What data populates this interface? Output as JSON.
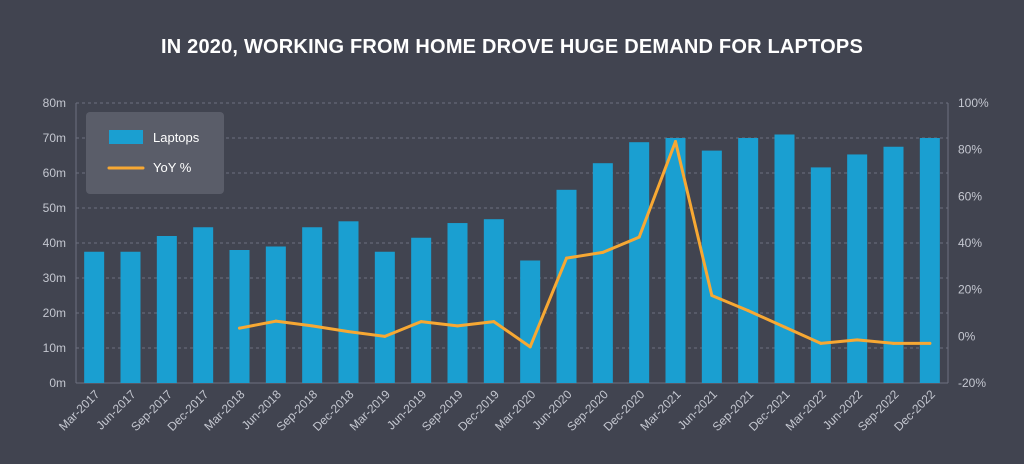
{
  "chart_data": {
    "type": "bar",
    "title": "IN 2020, WORKING FROM HOME DROVE HUGE DEMAND FOR LAPTOPS",
    "categories": [
      "Mar-2017",
      "Jun-2017",
      "Sep-2017",
      "Dec-2017",
      "Mar-2018",
      "Jun-2018",
      "Sep-2018",
      "Dec-2018",
      "Mar-2019",
      "Jun-2019",
      "Sep-2019",
      "Dec-2019",
      "Mar-2020",
      "Jun-2020",
      "Sep-2020",
      "Dec-2020",
      "Mar-2021",
      "Jun-2021",
      "Sep-2021",
      "Dec-2021",
      "Mar-2022",
      "Jun-2022",
      "Sep-2022",
      "Dec-2022"
    ],
    "series": [
      {
        "name": "Laptops",
        "type": "bar",
        "axis": "left",
        "values": [
          37.5,
          37.5,
          42,
          44.5,
          38,
          39,
          44.5,
          46.2,
          37.5,
          41.5,
          45.7,
          46.8,
          35,
          55.2,
          62.8,
          68.8,
          70,
          66.4,
          70,
          71,
          61.6,
          65.3,
          67.5,
          70
        ]
      },
      {
        "name": "YoY %",
        "type": "line",
        "axis": "right",
        "values": [
          null,
          null,
          null,
          null,
          3.5,
          6.5,
          4.5,
          2,
          0,
          6.3,
          4.5,
          6.3,
          -4.5,
          33.5,
          36,
          42.5,
          83.5,
          17.5,
          11,
          4,
          -3,
          -1.5,
          -3,
          -3
        ]
      }
    ],
    "left_axis": {
      "ylim": [
        0,
        80
      ],
      "ticks": [
        "0m",
        "10m",
        "20m",
        "30m",
        "40m",
        "50m",
        "60m",
        "70m",
        "80m"
      ]
    },
    "right_axis": {
      "ylim": [
        -20,
        100
      ],
      "ticks": [
        "-20%",
        "0%",
        "20%",
        "40%",
        "60%",
        "80%",
        "100%"
      ]
    },
    "legend": {
      "position": "top-left",
      "items": [
        "Laptops",
        "YoY %"
      ]
    },
    "grid": true
  },
  "colors": {
    "background": "#414450",
    "bar": "#1a9fd1",
    "line": "#f7a833",
    "grid": "#6d7180",
    "text": "#c4c7d0",
    "legend_bg": "#5a5d69"
  }
}
